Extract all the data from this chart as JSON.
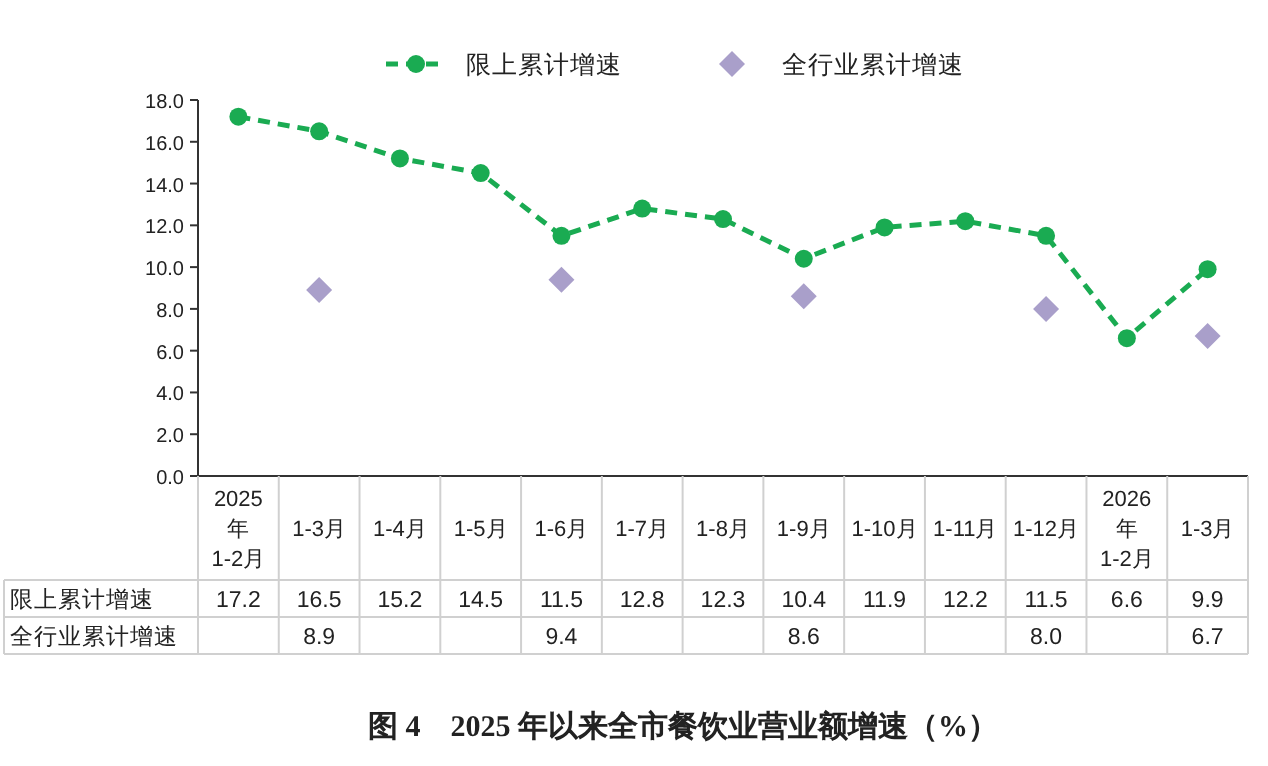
{
  "chart_data": {
    "type": "line",
    "title": "图 4　2025 年以来全市餐饮业营业额增速（%）",
    "categories": [
      "2025\n年\n1-2月",
      "1-3月",
      "1-4月",
      "1-5月",
      "1-6月",
      "1-7月",
      "1-8月",
      "1-9月",
      "1-10月",
      "1-11月",
      "1-12月",
      "2026\n年\n1-2月",
      "1-3月"
    ],
    "series": [
      {
        "name": "限上累计增速",
        "color": "#1aab52",
        "marker": "circle",
        "line_style": "dashed",
        "values": [
          17.2,
          16.5,
          15.2,
          14.5,
          11.5,
          12.8,
          12.3,
          10.4,
          11.9,
          12.2,
          11.5,
          6.6,
          9.9
        ],
        "value_labels": [
          "17.2",
          "16.5",
          "15.2",
          "14.5",
          "11.5",
          "12.8",
          "12.3",
          "10.4",
          "11.9",
          "12.2",
          "11.5",
          "6.6",
          "9.9"
        ]
      },
      {
        "name": "全行业累计增速",
        "type": "scatter",
        "color": "#a99fca",
        "marker": "diamond",
        "values": [
          null,
          8.9,
          null,
          null,
          9.4,
          null,
          null,
          8.6,
          null,
          null,
          8.0,
          null,
          6.7
        ],
        "value_labels": [
          null,
          "8.9",
          null,
          null,
          "9.4",
          null,
          null,
          "8.6",
          null,
          null,
          "8.0",
          null,
          "6.7"
        ]
      }
    ],
    "ylim": [
      0,
      18
    ],
    "yticks": [
      {
        "value": 0,
        "label": "0.0"
      },
      {
        "value": 2,
        "label": "2.0"
      },
      {
        "value": 4,
        "label": "4.0"
      },
      {
        "value": 6,
        "label": "6.0"
      },
      {
        "value": 8,
        "label": "8.0"
      },
      {
        "value": 10,
        "label": "10.0"
      },
      {
        "value": 12,
        "label": "12.0"
      },
      {
        "value": 14,
        "label": "14.0"
      },
      {
        "value": 16,
        "label": "16.0"
      },
      {
        "value": 18,
        "label": "18.0"
      }
    ],
    "legend": "top"
  }
}
